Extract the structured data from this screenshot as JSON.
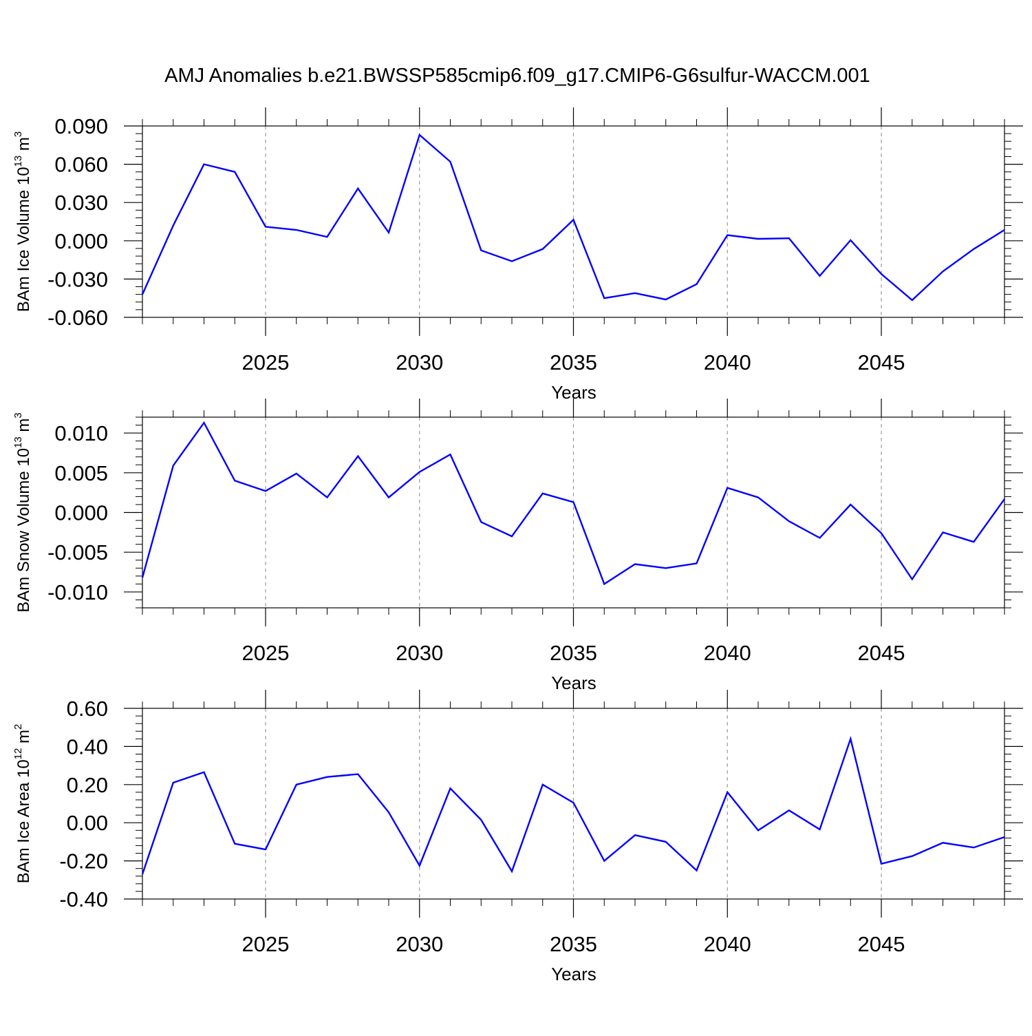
{
  "title": "AMJ Anomalies b.e21.BWSSP585cmip6.f09_g17.CMIP6-G6sulfur-WACCM.001",
  "line_color": "#0000ff",
  "chart_data": [
    {
      "type": "line",
      "ylabel": {
        "prefix": "BAm Ice Volume 10",
        "exp": "13",
        "unit": " m",
        "unit_exp": "3"
      },
      "xlabel": "Years",
      "xlim": [
        2021,
        2049
      ],
      "ylim": [
        -0.06,
        0.09
      ],
      "yticks": [
        -0.06,
        -0.03,
        0.0,
        0.03,
        0.06,
        0.09
      ],
      "ytick_labels": [
        "-0.060",
        "-0.030",
        "0.000",
        "0.030",
        "0.060",
        "0.090"
      ],
      "xticks": [
        2025,
        2030,
        2035,
        2040,
        2045
      ],
      "xtick_labels": [
        "2025",
        "2030",
        "2035",
        "2040",
        "2045"
      ],
      "x": [
        2021,
        2022,
        2023,
        2024,
        2025,
        2026,
        2027,
        2028,
        2029,
        2030,
        2031,
        2032,
        2033,
        2034,
        2035,
        2036,
        2037,
        2038,
        2039,
        2040,
        2041,
        2042,
        2043,
        2044,
        2045,
        2046,
        2047,
        2048,
        2049
      ],
      "values": [
        -0.042,
        0.012,
        0.06,
        0.054,
        0.011,
        0.0085,
        0.003,
        0.041,
        0.0065,
        0.083,
        0.062,
        -0.0075,
        -0.016,
        -0.0065,
        0.0165,
        -0.045,
        -0.041,
        -0.046,
        -0.034,
        0.0045,
        0.0015,
        0.002,
        -0.0275,
        0.0005,
        -0.026,
        -0.0465,
        -0.024,
        -0.0065,
        0.0085
      ]
    },
    {
      "type": "line",
      "ylabel": {
        "prefix": "BAm Snow Volume 10",
        "exp": "13",
        "unit": " m",
        "unit_exp": "3"
      },
      "xlabel": "Years",
      "xlim": [
        2021,
        2049
      ],
      "ylim": [
        -0.012,
        0.012
      ],
      "yticks": [
        -0.01,
        -0.005,
        0.0,
        0.005,
        0.01
      ],
      "ytick_labels": [
        "-0.010",
        "-0.005",
        "0.000",
        "0.005",
        "0.010"
      ],
      "xticks": [
        2025,
        2030,
        2035,
        2040,
        2045
      ],
      "xtick_labels": [
        "2025",
        "2030",
        "2035",
        "2040",
        "2045"
      ],
      "x": [
        2021,
        2022,
        2023,
        2024,
        2025,
        2026,
        2027,
        2028,
        2029,
        2030,
        2031,
        2032,
        2033,
        2034,
        2035,
        2036,
        2037,
        2038,
        2039,
        2040,
        2041,
        2042,
        2043,
        2044,
        2045,
        2046,
        2047,
        2048,
        2049
      ],
      "values": [
        -0.0082,
        0.0059,
        0.0113,
        0.004,
        0.0027,
        0.0049,
        0.0019,
        0.0071,
        0.0019,
        0.0051,
        0.0073,
        -0.0012,
        -0.003,
        0.0024,
        0.0013,
        -0.009,
        -0.0065,
        -0.007,
        -0.0064,
        0.0031,
        0.0019,
        -0.0011,
        -0.0032,
        0.001,
        -0.0026,
        -0.0084,
        -0.0025,
        -0.0037,
        0.0017
      ]
    },
    {
      "type": "line",
      "ylabel": {
        "prefix": "BAm Ice Area 10",
        "exp": "12",
        "unit": " m",
        "unit_exp": "2"
      },
      "xlabel": "Years",
      "xlim": [
        2021,
        2049
      ],
      "ylim": [
        -0.4,
        0.6
      ],
      "yticks": [
        -0.4,
        -0.2,
        0.0,
        0.2,
        0.4,
        0.6
      ],
      "ytick_labels": [
        "-0.40",
        "-0.20",
        "0.00",
        "0.20",
        "0.40",
        "0.60"
      ],
      "xticks": [
        2025,
        2030,
        2035,
        2040,
        2045
      ],
      "xtick_labels": [
        "2025",
        "2030",
        "2035",
        "2040",
        "2045"
      ],
      "x": [
        2021,
        2022,
        2023,
        2024,
        2025,
        2026,
        2027,
        2028,
        2029,
        2030,
        2031,
        2032,
        2033,
        2034,
        2035,
        2036,
        2037,
        2038,
        2039,
        2040,
        2041,
        2042,
        2043,
        2044,
        2045,
        2046,
        2047,
        2048,
        2049
      ],
      "values": [
        -0.27,
        0.21,
        0.265,
        -0.11,
        -0.14,
        0.2,
        0.24,
        0.255,
        0.055,
        -0.225,
        0.18,
        0.015,
        -0.255,
        0.2,
        0.105,
        -0.2,
        -0.065,
        -0.1,
        -0.25,
        0.16,
        -0.04,
        0.065,
        -0.035,
        0.44,
        -0.215,
        -0.175,
        -0.105,
        -0.13,
        -0.075
      ]
    }
  ]
}
